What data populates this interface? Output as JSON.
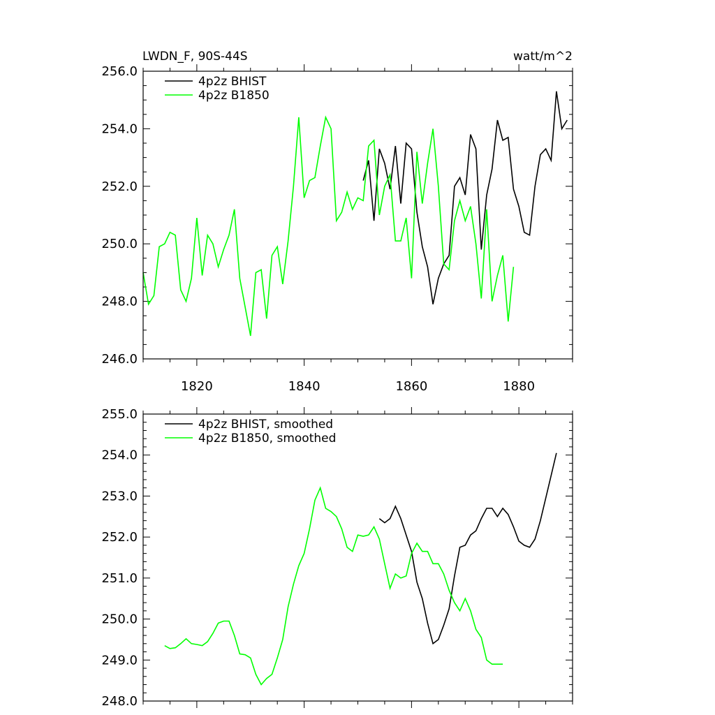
{
  "chart_data": [
    {
      "type": "line",
      "title": "LWDN_F, 90S-44S",
      "units": "watt/m^2",
      "xlim": [
        1810,
        1890
      ],
      "ylim": [
        246,
        256
      ],
      "xticks": [
        {
          "value": 1820,
          "label": "1820"
        },
        {
          "value": 1840,
          "label": "1840"
        },
        {
          "value": 1860,
          "label": "1860"
        },
        {
          "value": 1880,
          "label": "1880"
        }
      ],
      "yticks": [
        {
          "value": 246,
          "label": "246.0"
        },
        {
          "value": 248,
          "label": "248.0"
        },
        {
          "value": 250,
          "label": "250.0"
        },
        {
          "value": 252,
          "label": "252.0"
        },
        {
          "value": 254,
          "label": "254.0"
        },
        {
          "value": 256,
          "label": "256.0"
        }
      ],
      "legend_position": "top-left",
      "series": [
        {
          "name": "4p2z BHIST",
          "color": "#000000",
          "x": [
            1851,
            1852,
            1853,
            1854,
            1855,
            1856,
            1857,
            1858,
            1859,
            1860,
            1861,
            1862,
            1863,
            1864,
            1865,
            1866,
            1867,
            1868,
            1869,
            1870,
            1871,
            1872,
            1873,
            1874,
            1875,
            1876,
            1877,
            1878,
            1879,
            1880,
            1881,
            1882,
            1883,
            1884,
            1885,
            1886,
            1887,
            1888,
            1889
          ],
          "y": [
            252.2,
            252.9,
            250.8,
            253.3,
            252.8,
            251.9,
            253.4,
            251.4,
            253.5,
            253.3,
            251.1,
            249.9,
            249.2,
            247.9,
            248.8,
            249.3,
            249.6,
            252.0,
            252.3,
            251.7,
            253.8,
            253.3,
            249.8,
            251.7,
            252.6,
            254.3,
            253.6,
            253.7,
            251.9,
            251.3,
            250.4,
            250.3,
            252.0,
            253.1,
            253.3,
            252.9,
            255.3,
            254.0,
            254.3
          ]
        },
        {
          "name": "4p2z B1850",
          "color": "#00ff00",
          "x": [
            1810,
            1811,
            1812,
            1813,
            1814,
            1815,
            1816,
            1817,
            1818,
            1819,
            1820,
            1821,
            1822,
            1823,
            1824,
            1825,
            1826,
            1827,
            1828,
            1829,
            1830,
            1831,
            1832,
            1833,
            1834,
            1835,
            1836,
            1837,
            1838,
            1839,
            1840,
            1841,
            1842,
            1843,
            1844,
            1845,
            1846,
            1847,
            1848,
            1849,
            1850,
            1851,
            1852,
            1853,
            1854,
            1855,
            1856,
            1857,
            1858,
            1859,
            1860,
            1861,
            1862,
            1863,
            1864,
            1865,
            1866,
            1867,
            1868,
            1869,
            1870,
            1871,
            1872,
            1873,
            1874,
            1875,
            1876,
            1877,
            1878,
            1879
          ],
          "y": [
            249.0,
            247.9,
            248.2,
            249.9,
            250.0,
            250.4,
            250.3,
            248.4,
            248.0,
            248.8,
            250.9,
            248.9,
            250.3,
            250.0,
            249.2,
            249.8,
            250.3,
            251.2,
            248.8,
            247.8,
            246.8,
            249.0,
            249.1,
            247.4,
            249.6,
            249.9,
            248.6,
            250.1,
            252.0,
            254.4,
            251.6,
            252.2,
            252.3,
            253.4,
            254.4,
            254.0,
            250.8,
            251.1,
            251.8,
            251.2,
            251.6,
            251.5,
            253.4,
            253.6,
            251.0,
            252.0,
            252.4,
            250.1,
            250.1,
            250.9,
            248.8,
            253.2,
            251.4,
            252.8,
            254.0,
            252.0,
            249.3,
            249.1,
            250.8,
            251.5,
            250.8,
            251.3,
            250.0,
            248.1,
            251.2,
            248.0,
            248.9,
            249.6,
            247.3,
            249.2
          ]
        }
      ]
    },
    {
      "type": "line",
      "xlim": [
        1810,
        1890
      ],
      "ylim": [
        248,
        255
      ],
      "xticks": [
        {
          "value": 1820,
          "label": ""
        },
        {
          "value": 1840,
          "label": ""
        },
        {
          "value": 1860,
          "label": ""
        },
        {
          "value": 1880,
          "label": ""
        }
      ],
      "yticks": [
        {
          "value": 248,
          "label": "248.0"
        },
        {
          "value": 249,
          "label": "249.0"
        },
        {
          "value": 250,
          "label": "250.0"
        },
        {
          "value": 251,
          "label": "251.0"
        },
        {
          "value": 252,
          "label": "252.0"
        },
        {
          "value": 253,
          "label": "253.0"
        },
        {
          "value": 254,
          "label": "254.0"
        },
        {
          "value": 255,
          "label": "255.0"
        }
      ],
      "legend_position": "top-left",
      "series": [
        {
          "name": "4p2z BHIST, smoothed",
          "color": "#000000",
          "x": [
            1854,
            1855,
            1856,
            1857,
            1858,
            1859,
            1860,
            1861,
            1862,
            1863,
            1864,
            1865,
            1866,
            1867,
            1868,
            1869,
            1870,
            1871,
            1872,
            1873,
            1874,
            1875,
            1876,
            1877,
            1878,
            1879,
            1880,
            1881,
            1882,
            1883,
            1884,
            1885,
            1886,
            1887
          ],
          "y": [
            252.45,
            252.35,
            252.45,
            252.75,
            252.45,
            252.05,
            251.65,
            250.9,
            250.5,
            249.9,
            249.4,
            249.5,
            249.85,
            250.25,
            251.05,
            251.75,
            251.8,
            252.05,
            252.15,
            252.45,
            252.7,
            252.7,
            252.5,
            252.7,
            252.55,
            252.25,
            251.9,
            251.8,
            251.75,
            251.95,
            252.4,
            252.95,
            253.5,
            254.05
          ]
        },
        {
          "name": "4p2z B1850, smoothed",
          "color": "#00ff00",
          "x": [
            1814,
            1815,
            1816,
            1817,
            1818,
            1819,
            1820,
            1821,
            1822,
            1823,
            1824,
            1825,
            1826,
            1827,
            1828,
            1829,
            1830,
            1831,
            1832,
            1833,
            1834,
            1835,
            1836,
            1837,
            1838,
            1839,
            1840,
            1841,
            1842,
            1843,
            1844,
            1845,
            1846,
            1847,
            1848,
            1849,
            1850,
            1851,
            1852,
            1853,
            1854,
            1855,
            1856,
            1857,
            1858,
            1859,
            1860,
            1861,
            1862,
            1863,
            1864,
            1865,
            1866,
            1867,
            1868,
            1869,
            1870,
            1871,
            1872,
            1873,
            1874,
            1875,
            1876,
            1877
          ],
          "y": [
            249.35,
            249.28,
            249.3,
            249.4,
            249.52,
            249.4,
            249.38,
            249.35,
            249.45,
            249.65,
            249.9,
            249.95,
            249.95,
            249.6,
            249.15,
            249.13,
            249.05,
            248.65,
            248.4,
            248.55,
            248.65,
            249.05,
            249.5,
            250.3,
            250.85,
            251.3,
            251.6,
            252.2,
            252.9,
            253.2,
            252.7,
            252.62,
            252.5,
            252.2,
            251.75,
            251.65,
            252.05,
            252.02,
            252.05,
            252.25,
            251.95,
            251.35,
            250.75,
            251.1,
            251.0,
            251.05,
            251.6,
            251.85,
            251.65,
            251.65,
            251.35,
            251.35,
            251.1,
            250.7,
            250.4,
            250.2,
            250.5,
            250.2,
            249.75,
            249.55,
            249.0,
            248.9,
            248.9,
            248.9
          ]
        }
      ]
    }
  ]
}
